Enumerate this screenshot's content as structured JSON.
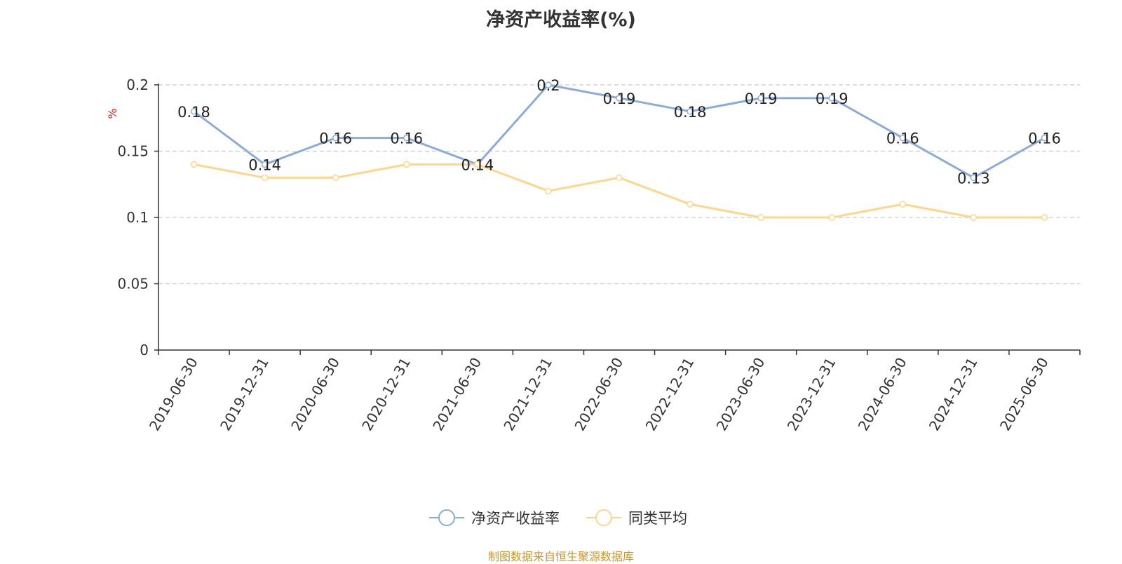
{
  "title": "净资产收益率(%)",
  "source": "制图数据来自恒生聚源数据库",
  "chart_data": {
    "type": "line",
    "title": "净资产收益率(%)",
    "ylabel": "%",
    "ylim": [
      0,
      0.2
    ],
    "yticks": [
      "0",
      "0.05",
      "0.1",
      "0.15",
      "0.2"
    ],
    "ytick_values": [
      0,
      0.05,
      0.1,
      0.15,
      0.2
    ],
    "grid": true,
    "legend_position": "bottom-center",
    "categories": [
      "2019-06-30",
      "2019-12-31",
      "2020-06-30",
      "2020-12-31",
      "2021-06-30",
      "2021-12-31",
      "2022-06-30",
      "2022-12-31",
      "2023-06-30",
      "2023-12-31",
      "2024-06-30",
      "2024-12-31",
      "2025-06-30"
    ],
    "series": [
      {
        "name": "净资产收益率",
        "color": "#8eabd6",
        "values": [
          0.18,
          0.14,
          0.16,
          0.16,
          0.14,
          0.2,
          0.19,
          0.18,
          0.19,
          0.19,
          0.16,
          0.13,
          0.16
        ],
        "labels": [
          "0.18",
          "0.14",
          "0.16",
          "0.16",
          "0.14",
          "0.2",
          "0.19",
          "0.18",
          "0.19",
          "0.19",
          "0.16",
          "0.13",
          "0.16"
        ]
      },
      {
        "name": "同类平均",
        "color": "#fcd58f",
        "values": [
          0.14,
          0.13,
          0.13,
          0.14,
          0.14,
          0.12,
          0.13,
          0.11,
          0.1,
          0.1,
          0.11,
          0.1,
          0.1
        ]
      }
    ]
  }
}
